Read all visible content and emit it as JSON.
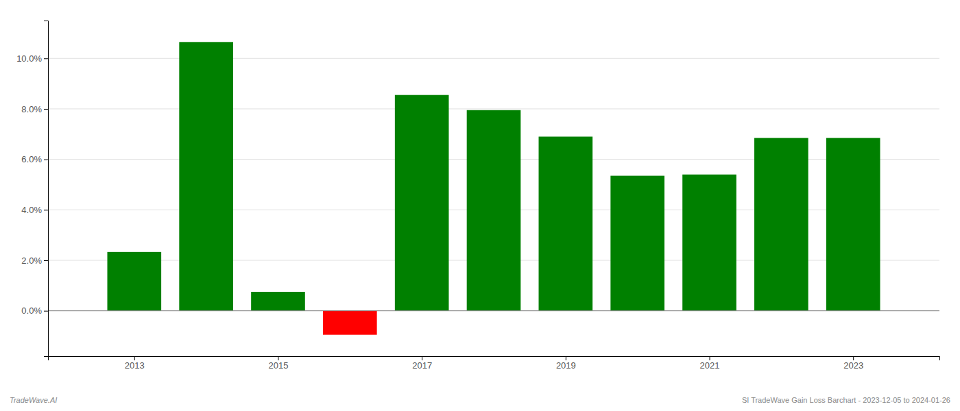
{
  "chart_data": {
    "type": "bar",
    "x": [
      2013,
      2014,
      2015,
      2016,
      2017,
      2018,
      2019,
      2020,
      2021,
      2022,
      2023
    ],
    "values": [
      0.0233,
      0.1065,
      0.0075,
      -0.0095,
      0.0855,
      0.0795,
      0.069,
      0.0535,
      0.054,
      0.0685,
      0.0685
    ],
    "colors": [
      "#008000",
      "#008000",
      "#008000",
      "#ff0000",
      "#008000",
      "#008000",
      "#008000",
      "#008000",
      "#008000",
      "#008000",
      "#008000"
    ],
    "xlim": [
      2011.8,
      2024.2
    ],
    "xticks": [
      2013,
      2015,
      2017,
      2019,
      2021,
      2023
    ],
    "ylim": [
      -0.018,
      0.115
    ],
    "yticks": [
      {
        "value": 0.0,
        "label": "0.0%"
      },
      {
        "value": 0.02,
        "label": "2.0%"
      },
      {
        "value": 0.04,
        "label": "4.0%"
      },
      {
        "value": 0.06,
        "label": "6.0%"
      },
      {
        "value": 0.08,
        "label": "8.0%"
      },
      {
        "value": 0.1,
        "label": "10.0%"
      }
    ],
    "grid": true,
    "annotations": [
      "TradeWave.AI",
      "SI TradeWave Gain Loss Barchart - 2023-12-05 to 2024-01-26"
    ]
  }
}
